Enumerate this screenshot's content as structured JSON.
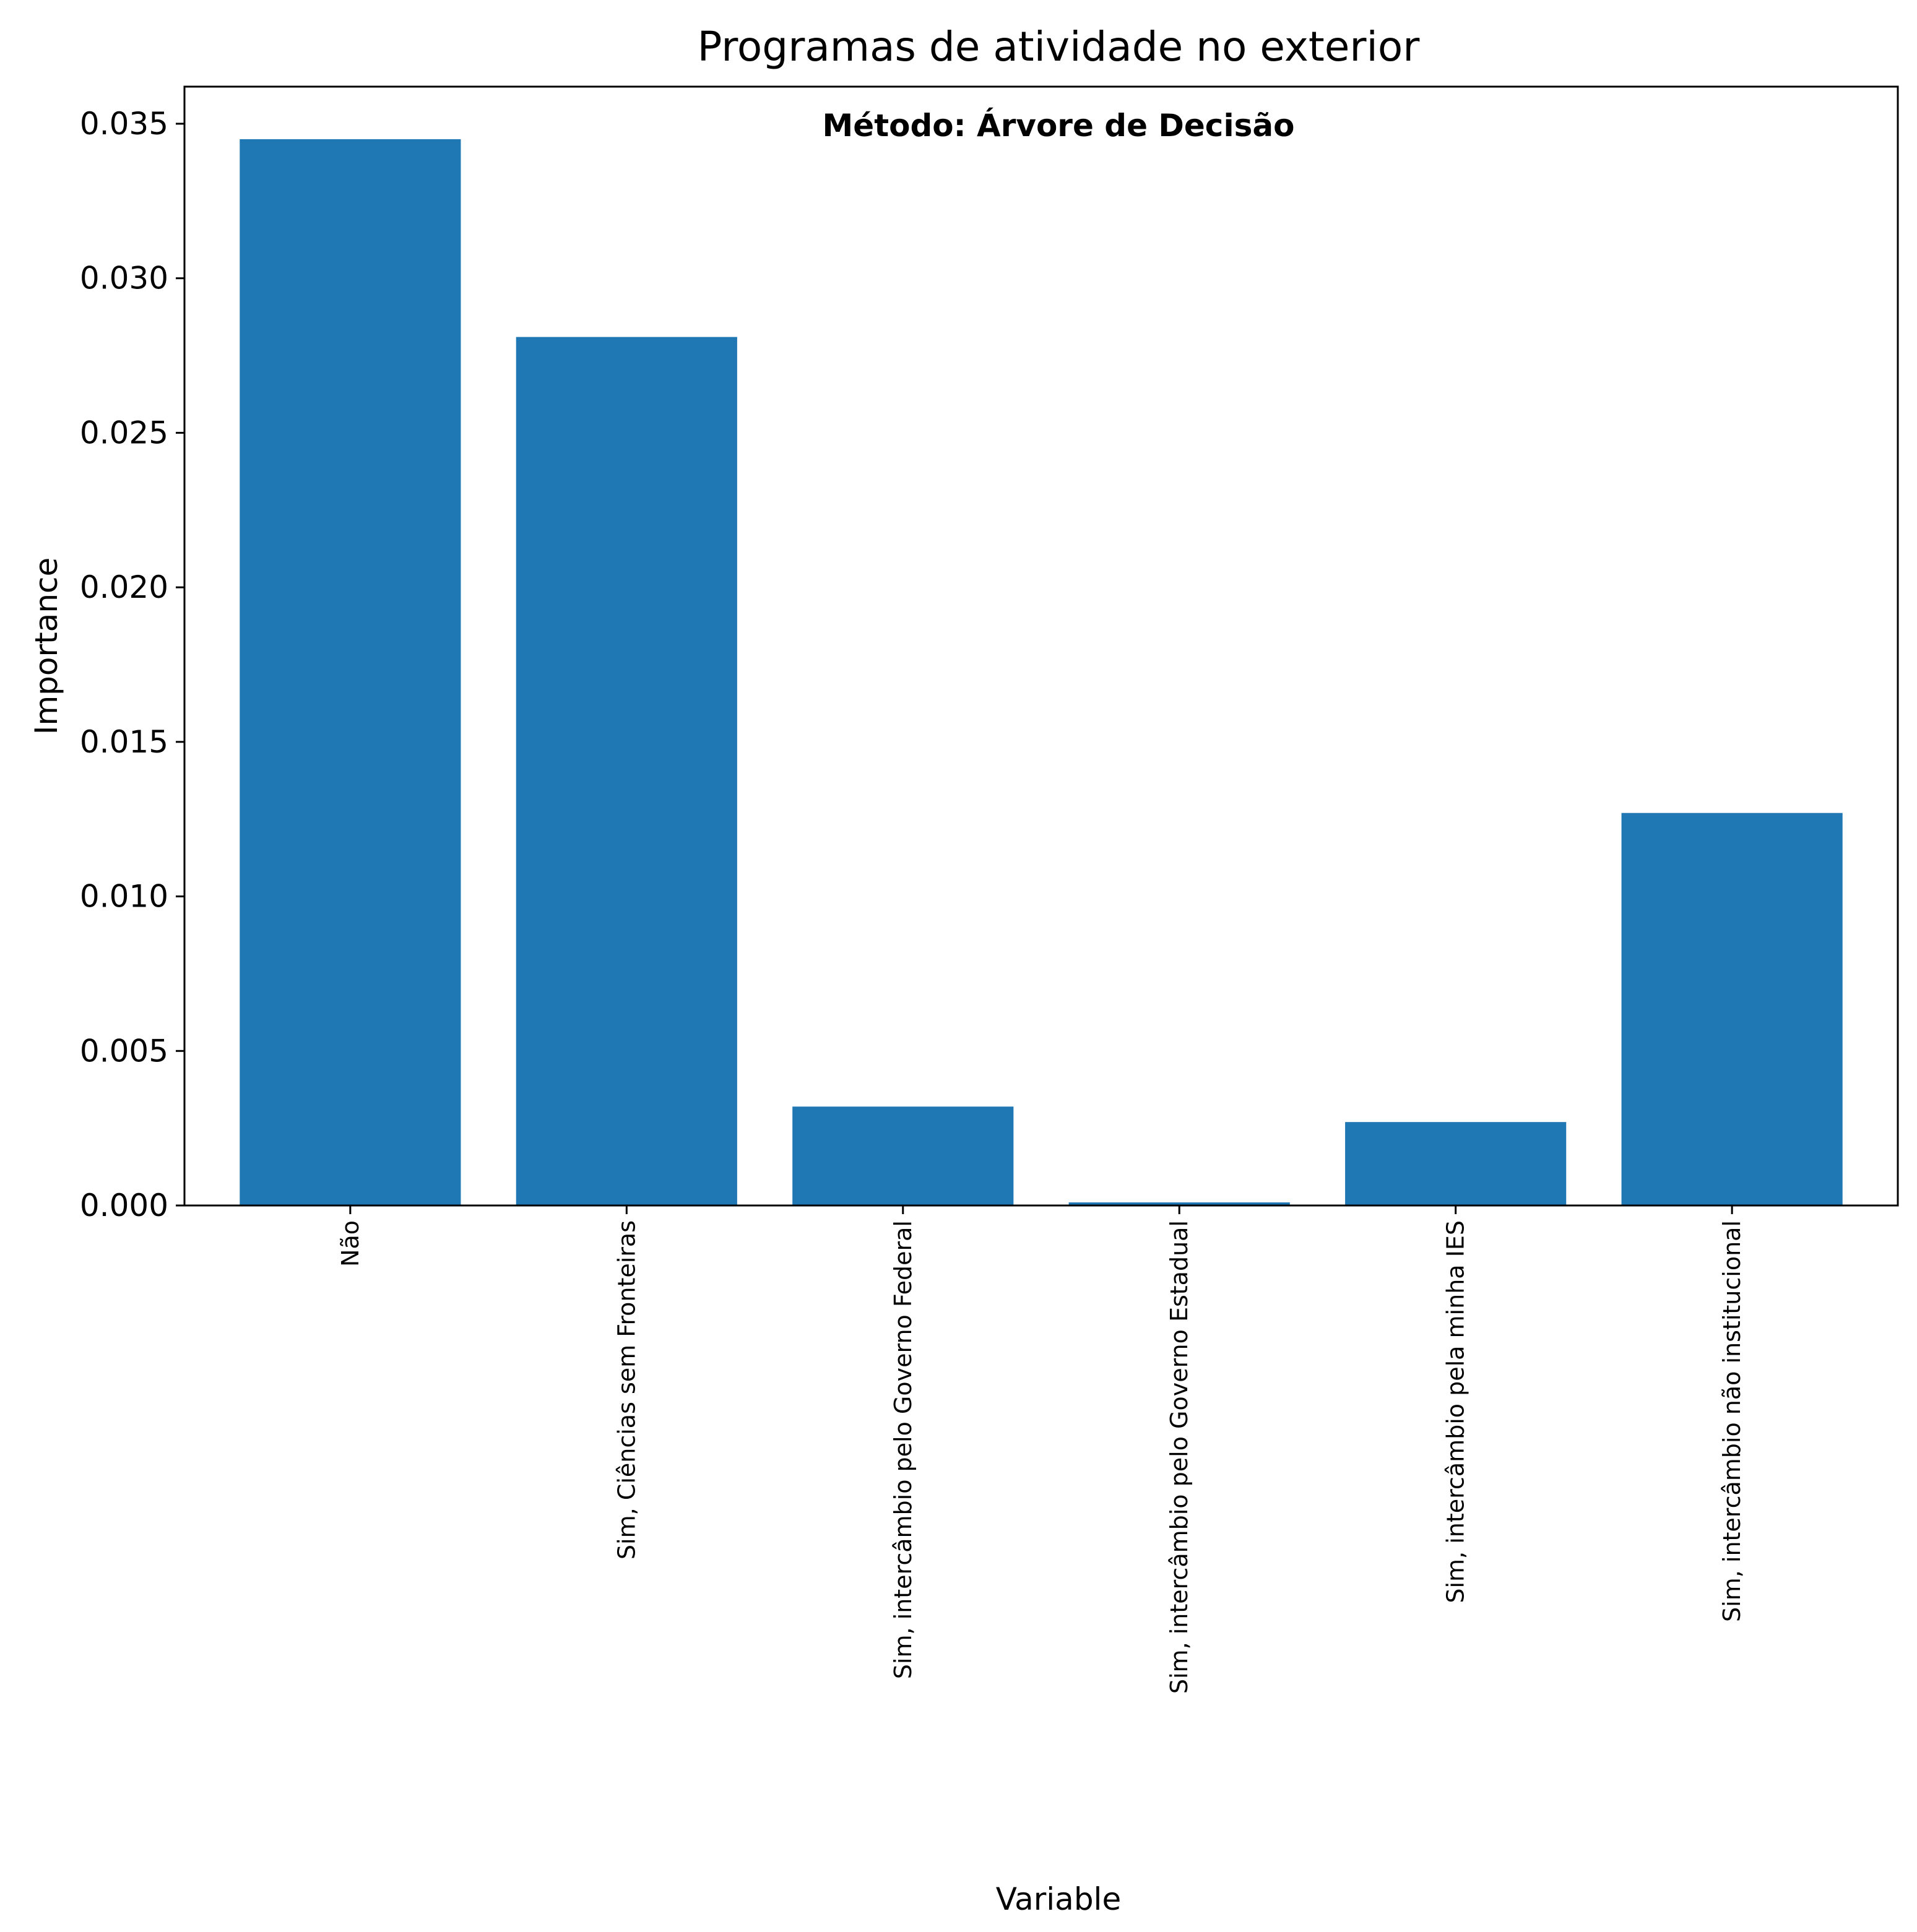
{
  "chart_data": {
    "type": "bar",
    "title": "Programas de atividade no exterior",
    "annotation": "Método: Árvore de Decisão",
    "xlabel": "Variable",
    "ylabel": "Importance",
    "categories": [
      "Não",
      "Sim, Ciências sem Fronteiras",
      "Sim, intercâmbio pelo Governo Federal",
      "Sim, intercâmbio pelo Governo Estadual",
      "Sim, intercâmbio pela minha IES",
      "Sim, intercâmbio não institucional"
    ],
    "values": [
      0.0345,
      0.0281,
      0.0032,
      0.0001,
      0.0027,
      0.0127
    ],
    "ylim": [
      0,
      0.0362
    ],
    "yticks": [
      "0.000",
      "0.005",
      "0.010",
      "0.015",
      "0.020",
      "0.025",
      "0.030",
      "0.035"
    ],
    "ytick_values": [
      0,
      0.005,
      0.01,
      0.015,
      0.02,
      0.025,
      0.03,
      0.035
    ],
    "bar_color": "#1f77b4",
    "grid": false,
    "legend": "none"
  }
}
